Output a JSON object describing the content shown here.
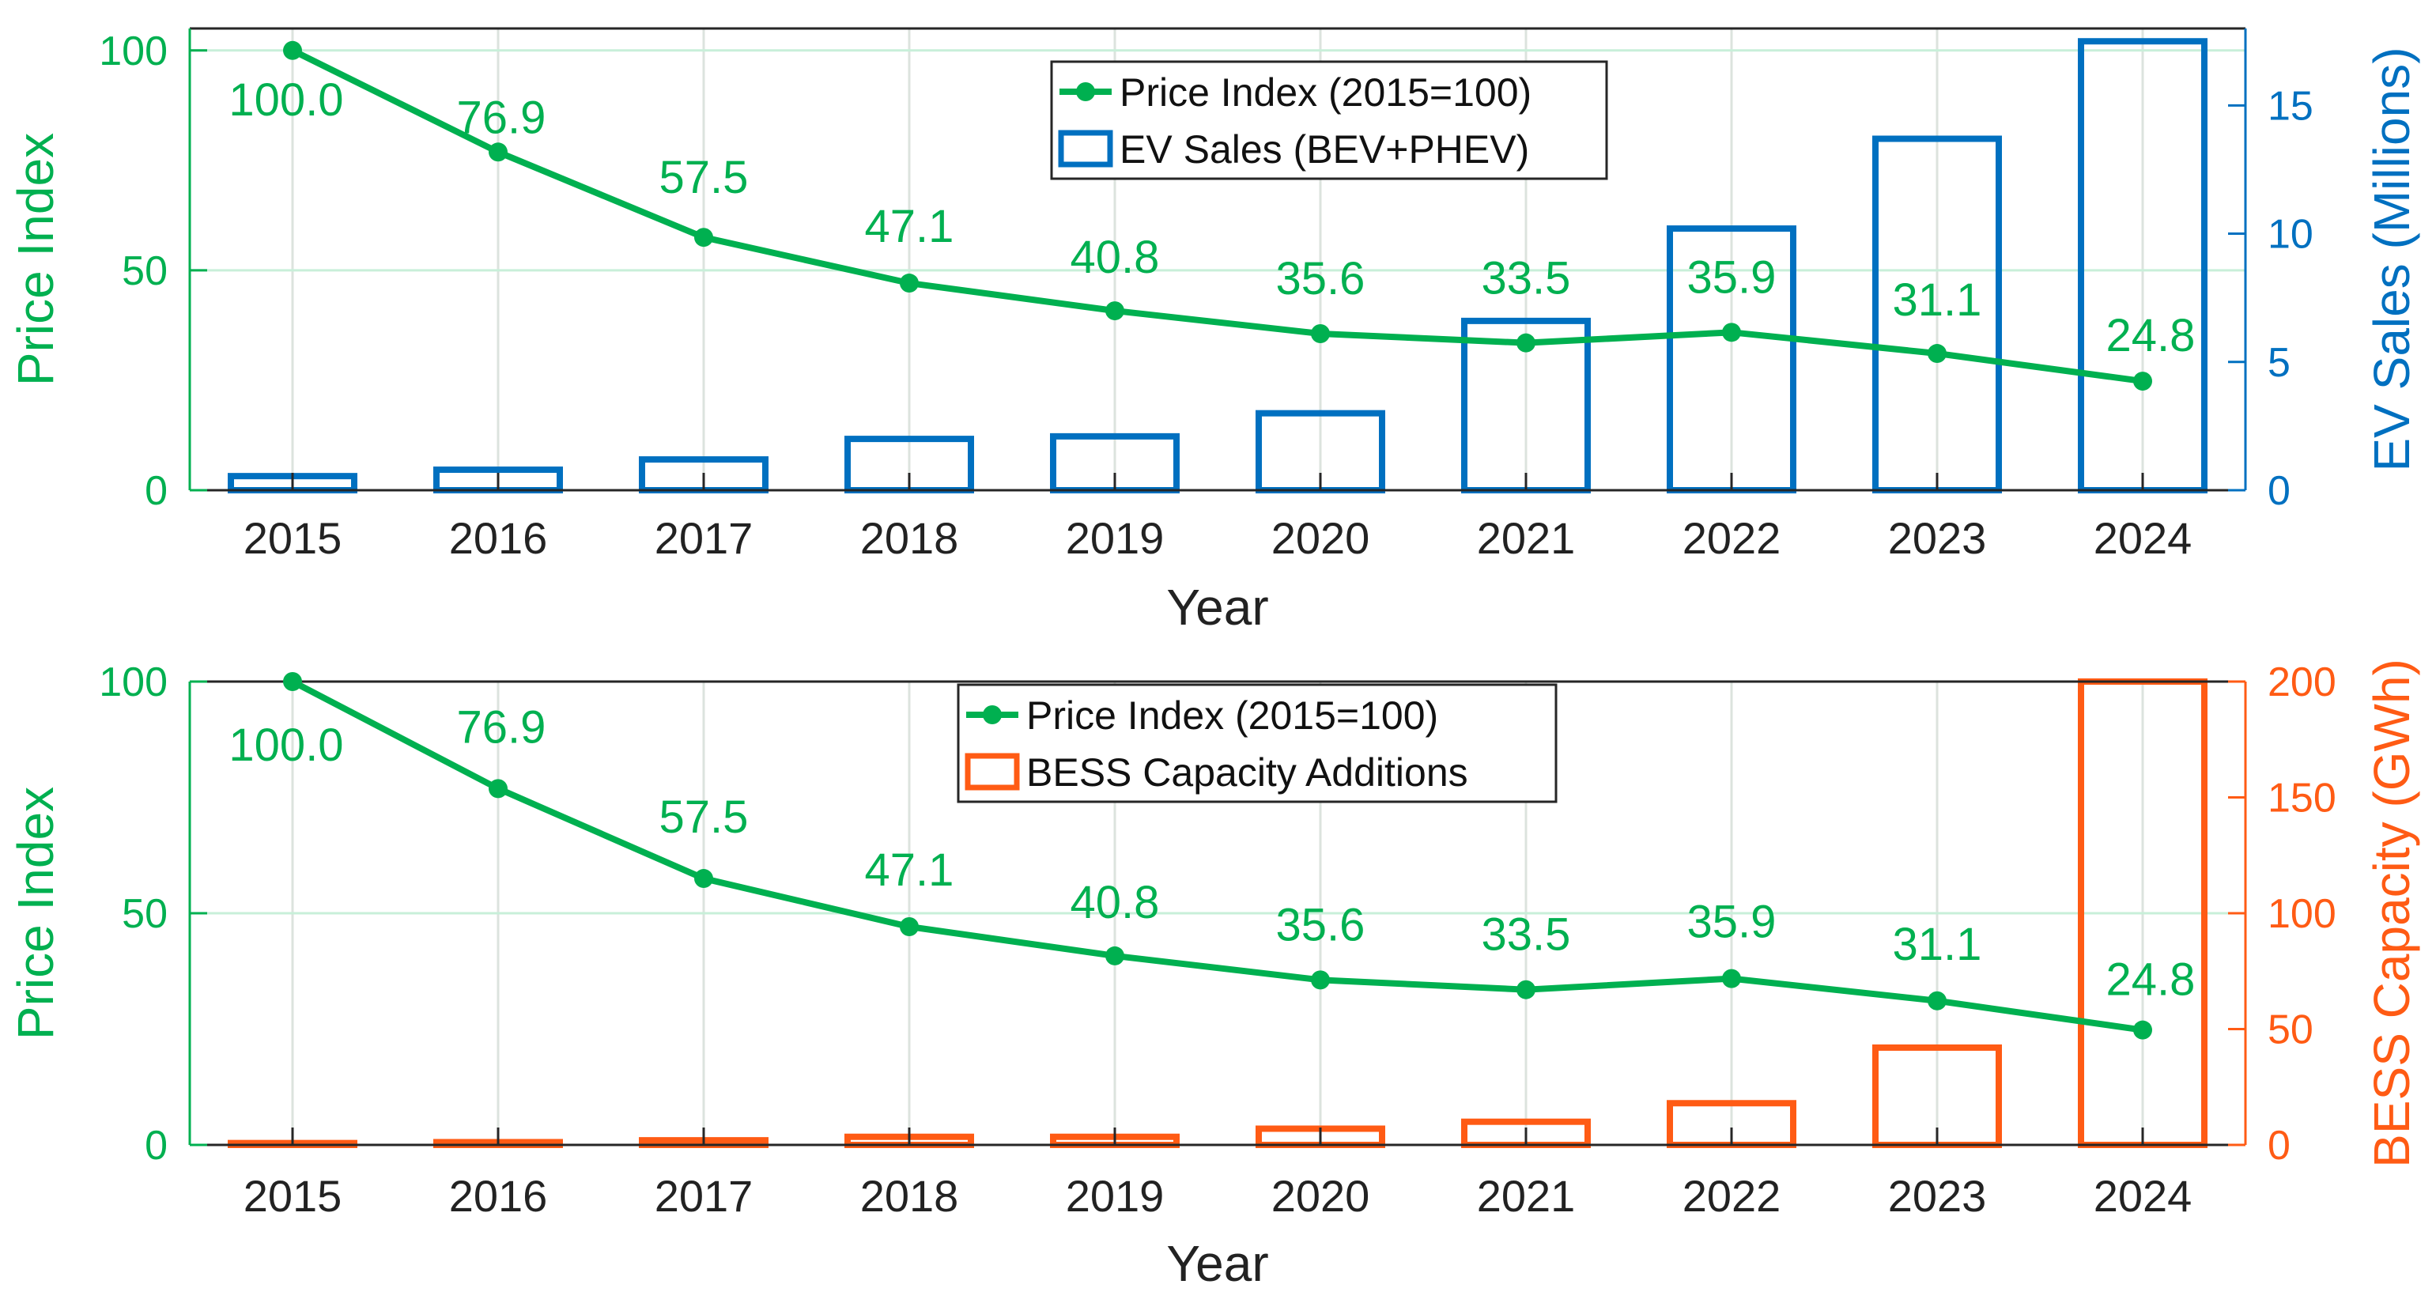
{
  "colors": {
    "price": "#00B050",
    "ev": "#0070C0",
    "bess": "#FF5B14",
    "axis": "#262626",
    "grid": "#DCE3DE",
    "gridline_y": "#C8EFD9"
  },
  "chart_data": [
    {
      "type": "bar+line",
      "x": [
        2015,
        2016,
        2017,
        2018,
        2019,
        2020,
        2021,
        2022,
        2023,
        2024
      ],
      "xlabel": "Year",
      "ylabel_left": "Price Index",
      "ylabel_right": "EV Sales (Millions)",
      "ylim_left": [
        0,
        105
      ],
      "yticks_left": [
        0,
        50,
        100
      ],
      "ylim_right": [
        0,
        18
      ],
      "yticks_right": [
        0,
        5,
        10,
        15
      ],
      "grid": true,
      "legend_position": "top-center",
      "series": [
        {
          "name": "Price Index (2015=100)",
          "kind": "line",
          "axis": "left",
          "values": [
            100.0,
            76.9,
            57.5,
            47.1,
            40.8,
            35.6,
            33.5,
            35.9,
            31.1,
            24.8
          ],
          "labels": [
            "100.0",
            "76.9",
            "57.5",
            "47.1",
            "40.8",
            "35.6",
            "33.5",
            "35.9",
            "31.1",
            "24.8"
          ]
        },
        {
          "name": "EV Sales (BEV+PHEV)",
          "kind": "bar",
          "axis": "right",
          "values": [
            0.55,
            0.8,
            1.2,
            2.0,
            2.1,
            3.0,
            6.6,
            10.2,
            13.7,
            17.5
          ]
        }
      ]
    },
    {
      "type": "bar+line",
      "x": [
        2015,
        2016,
        2017,
        2018,
        2019,
        2020,
        2021,
        2022,
        2023,
        2024
      ],
      "xlabel": "Year",
      "ylabel_left": "Price Index",
      "ylabel_right": "BESS Capacity (GWh)",
      "ylim_left": [
        0,
        100
      ],
      "yticks_left": [
        0,
        50,
        100
      ],
      "ylim_right": [
        0,
        200
      ],
      "yticks_right": [
        0,
        50,
        100,
        150,
        200
      ],
      "grid": true,
      "legend_position": "top-center",
      "series": [
        {
          "name": "Price Index (2015=100)",
          "kind": "line",
          "axis": "left",
          "values": [
            100.0,
            76.9,
            57.5,
            47.1,
            40.8,
            35.6,
            33.5,
            35.9,
            31.1,
            24.8
          ],
          "labels": [
            "100.0",
            "76.9",
            "57.5",
            "47.1",
            "40.8",
            "35.6",
            "33.5",
            "35.9",
            "31.1",
            "24.8"
          ]
        },
        {
          "name": "BESS Capacity Additions",
          "kind": "bar",
          "axis": "right",
          "values": [
            0.8,
            1.2,
            2.0,
            3.5,
            3.5,
            7.0,
            10.0,
            18.0,
            42.0,
            200.0
          ]
        }
      ]
    }
  ]
}
